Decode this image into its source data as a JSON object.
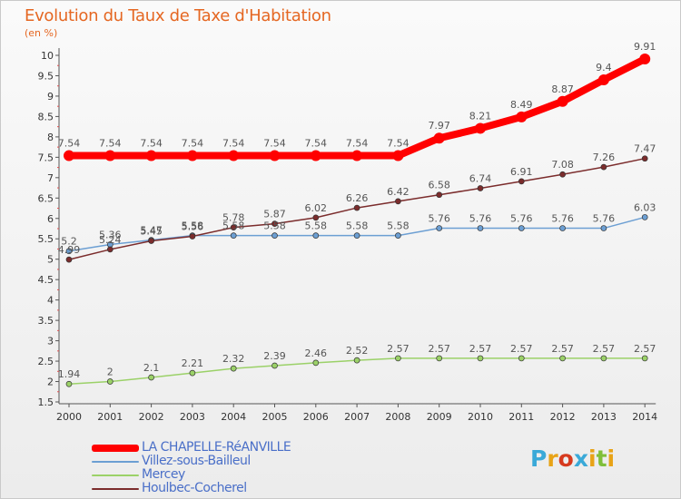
{
  "header": {
    "title": "Evolution du Taux de Taxe d'Habitation",
    "subtitle": "(en %)"
  },
  "logo": {
    "letters": [
      "P",
      "r",
      "o",
      "x",
      "i",
      "t",
      "i"
    ],
    "colors": [
      "#3aa9d8",
      "#e8a317",
      "#d63a1e",
      "#3aa9d8",
      "#e8a317",
      "#7fbf3a",
      "#e8a317"
    ]
  },
  "chart_data": {
    "type": "line",
    "title": "Evolution du Taux de Taxe d'Habitation",
    "xlabel": "",
    "ylabel": "(en %)",
    "x": [
      "2000",
      "2001",
      "2002",
      "2003",
      "2004",
      "2005",
      "2006",
      "2007",
      "2008",
      "2009",
      "2010",
      "2011",
      "2012",
      "2013",
      "2014"
    ],
    "ylim": [
      1.5,
      10
    ],
    "yticks": [
      "1.5",
      "2",
      "2.5",
      "3",
      "3.5",
      "4",
      "4.5",
      "5",
      "5.5",
      "6",
      "6.5",
      "7",
      "7.5",
      "8",
      "8.5",
      "9",
      "9.5",
      "10"
    ],
    "grid": false,
    "legend_position": "bottom-left",
    "series": [
      {
        "name": "LA CHAPELLE-RéANVILLE",
        "color": "#ff0000",
        "values": [
          7.54,
          7.54,
          7.54,
          7.54,
          7.54,
          7.54,
          7.54,
          7.54,
          7.54,
          7.97,
          8.21,
          8.49,
          8.87,
          9.4,
          9.91
        ],
        "labels": [
          "7.54",
          "7.54",
          "7.54",
          "7.54",
          "7.54",
          "7.54",
          "7.54",
          "7.54",
          "7.54",
          "7.97",
          "8.21",
          "8.49",
          "8.87",
          "9.4",
          "9.91"
        ]
      },
      {
        "name": "Villez-sous-Bailleul",
        "color": "#6c9fd3",
        "values": [
          5.2,
          5.36,
          5.47,
          5.58,
          5.58,
          5.58,
          5.58,
          5.58,
          5.58,
          5.76,
          5.76,
          5.76,
          5.76,
          5.76,
          6.03
        ],
        "labels": [
          "5.2",
          "5.36",
          "5.47",
          "5.58",
          "5.58",
          "5.58",
          "5.58",
          "5.58",
          "5.58",
          "5.76",
          "5.76",
          "5.76",
          "5.76",
          "5.76",
          "6.03"
        ]
      },
      {
        "name": "Mercey",
        "color": "#9bd168",
        "values": [
          1.94,
          2,
          2.1,
          2.21,
          2.32,
          2.39,
          2.46,
          2.52,
          2.57,
          2.57,
          2.57,
          2.57,
          2.57,
          2.57,
          2.57
        ],
        "labels": [
          "1.94",
          "2",
          "2.1",
          "2.21",
          "2.32",
          "2.39",
          "2.46",
          "2.52",
          "2.57",
          "2.57",
          "2.57",
          "2.57",
          "2.57",
          "2.57",
          "2.57"
        ]
      },
      {
        "name": "Houlbec-Cocherel",
        "color": "#7b2c2c",
        "values": [
          4.99,
          5.24,
          5.45,
          5.56,
          5.78,
          5.87,
          6.02,
          6.26,
          6.42,
          6.58,
          6.74,
          6.91,
          7.08,
          7.26,
          7.47
        ],
        "labels": [
          "4.99",
          "5.24",
          "5.45",
          "5.56",
          "5.78",
          "5.87",
          "6.02",
          "6.26",
          "6.42",
          "6.58",
          "6.74",
          "6.91",
          "7.08",
          "7.26",
          "7.47"
        ]
      }
    ]
  }
}
